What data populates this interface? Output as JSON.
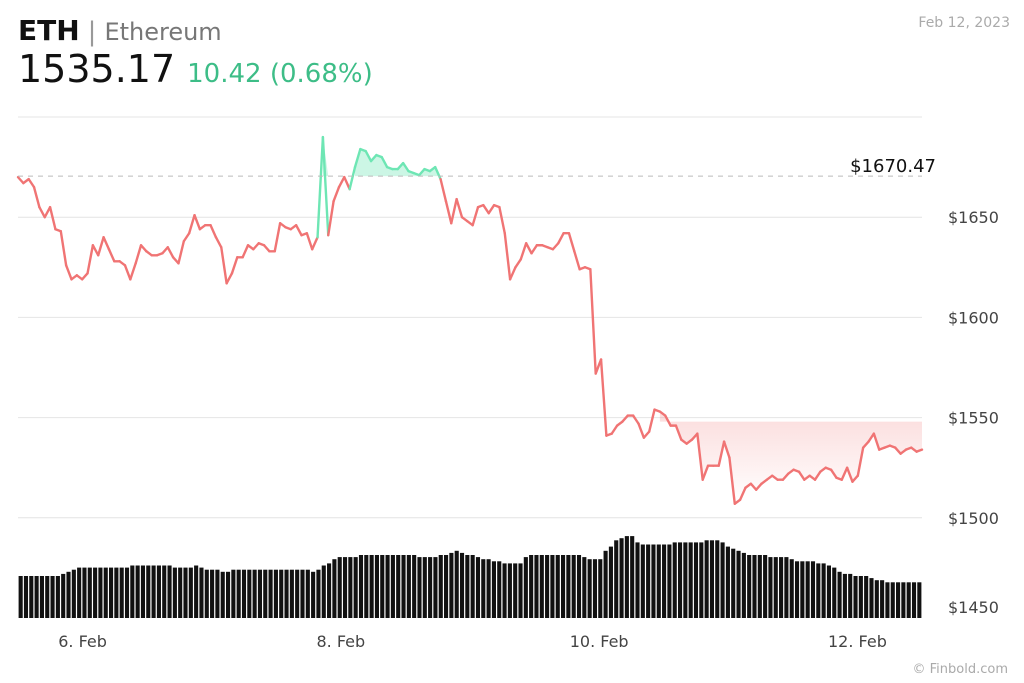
{
  "header": {
    "symbol": "ETH",
    "separator": "|",
    "name": "Ethereum",
    "price": "1535.17",
    "change": "10.42 (0.68%)",
    "date": "Feb 12, 2023"
  },
  "footer": {
    "credit": "© Finbold.com"
  },
  "colors": {
    "up": "#6ee6b4",
    "down": "#f07474",
    "accent_green": "#3dbd87",
    "volume": "#111111"
  },
  "chart_data": {
    "type": "line",
    "title": "",
    "xlabel": "",
    "ylabel": "",
    "ylim": [
      1450,
      1700
    ],
    "y_ticks": [
      1500,
      1550,
      1600,
      1650
    ],
    "y_tick_labels": [
      "$1500",
      "$1550",
      "$1600",
      "$1650"
    ],
    "volume_axis_label": "$1450",
    "x_ticks": [
      {
        "x": 12,
        "label": "6. Feb"
      },
      {
        "x": 60,
        "label": "8. Feb"
      },
      {
        "x": 108,
        "label": "10. Feb"
      },
      {
        "x": 156,
        "label": "12. Feb"
      }
    ],
    "x_range": [
      0,
      168
    ],
    "reference": {
      "value": 1670.47,
      "label": "$1670.47"
    },
    "series": [
      {
        "values": [
          1670,
          1667,
          1669,
          1665,
          1655,
          1650,
          1655,
          1644,
          1643,
          1626,
          1619,
          1621,
          1619,
          1622,
          1636,
          1631,
          1640,
          1634,
          1628,
          1628,
          1626,
          1619,
          1627,
          1636,
          1633,
          1631,
          1631,
          1632,
          1635,
          1630,
          1627,
          1638,
          1642,
          1651,
          1644,
          1646,
          1646,
          1640,
          1635,
          1617,
          1622,
          1630,
          1630,
          1636,
          1634,
          1637,
          1636,
          1633,
          1633,
          1647,
          1645,
          1644,
          1646,
          1641,
          1642,
          1634,
          1640,
          1690,
          1641,
          1658,
          1665,
          1670,
          1664,
          1675,
          1684,
          1683,
          1678,
          1681,
          1680,
          1675,
          1674,
          1674,
          1677,
          1673,
          1672,
          1671,
          1674,
          1673,
          1675,
          1669,
          1658,
          1647,
          1659,
          1650,
          1648,
          1646,
          1655,
          1656,
          1652,
          1656,
          1655,
          1642,
          1619,
          1625,
          1629,
          1637,
          1632,
          1636,
          1636,
          1635,
          1634,
          1637,
          1642,
          1642,
          1633,
          1624,
          1625,
          1624,
          1572,
          1579,
          1541,
          1542,
          1546,
          1548,
          1551,
          1551,
          1547,
          1540,
          1543,
          1554,
          1553,
          1551,
          1546,
          1546,
          1539,
          1537,
          1539,
          1542,
          1519,
          1526,
          1526,
          1526,
          1538,
          1530,
          1507,
          1509,
          1515,
          1517,
          1514,
          1517,
          1519,
          1521,
          1519,
          1519,
          1522,
          1524,
          1523,
          1519,
          1521,
          1519,
          1523,
          1525,
          1524,
          1520,
          1519,
          1525,
          1518,
          1521,
          1535,
          1538,
          1542,
          1534,
          1535,
          1536,
          1535,
          1532,
          1534,
          1535,
          1533,
          1534
        ]
      }
    ],
    "volume": [
      20,
      20,
      20,
      20,
      20,
      20,
      20,
      20,
      21,
      22,
      23,
      24,
      24,
      24,
      24,
      24,
      24,
      24,
      24,
      24,
      24,
      25,
      25,
      25,
      25,
      25,
      25,
      25,
      25,
      24,
      24,
      24,
      24,
      25,
      24,
      23,
      23,
      23,
      22,
      22,
      23,
      23,
      23,
      23,
      23,
      23,
      23,
      23,
      23,
      23,
      23,
      23,
      23,
      23,
      23,
      22,
      23,
      25,
      26,
      28,
      29,
      29,
      29,
      29,
      30,
      30,
      30,
      30,
      30,
      30,
      30,
      30,
      30,
      30,
      30,
      29,
      29,
      29,
      29,
      30,
      30,
      31,
      32,
      31,
      30,
      30,
      29,
      28,
      28,
      27,
      27,
      26,
      26,
      26,
      26,
      29,
      30,
      30,
      30,
      30,
      30,
      30,
      30,
      30,
      30,
      30,
      29,
      28,
      28,
      28,
      32,
      34,
      37,
      38,
      39,
      39,
      36,
      35,
      35,
      35,
      35,
      35,
      35,
      36,
      36,
      36,
      36,
      36,
      36,
      37,
      37,
      37,
      36,
      34,
      33,
      32,
      31,
      30,
      30,
      30,
      30,
      29,
      29,
      29,
      29,
      28,
      27,
      27,
      27,
      27,
      26,
      26,
      25,
      24,
      22,
      21,
      21,
      20,
      20,
      20,
      19,
      18,
      18,
      17,
      17,
      17,
      17,
      17,
      17,
      17
    ]
  }
}
